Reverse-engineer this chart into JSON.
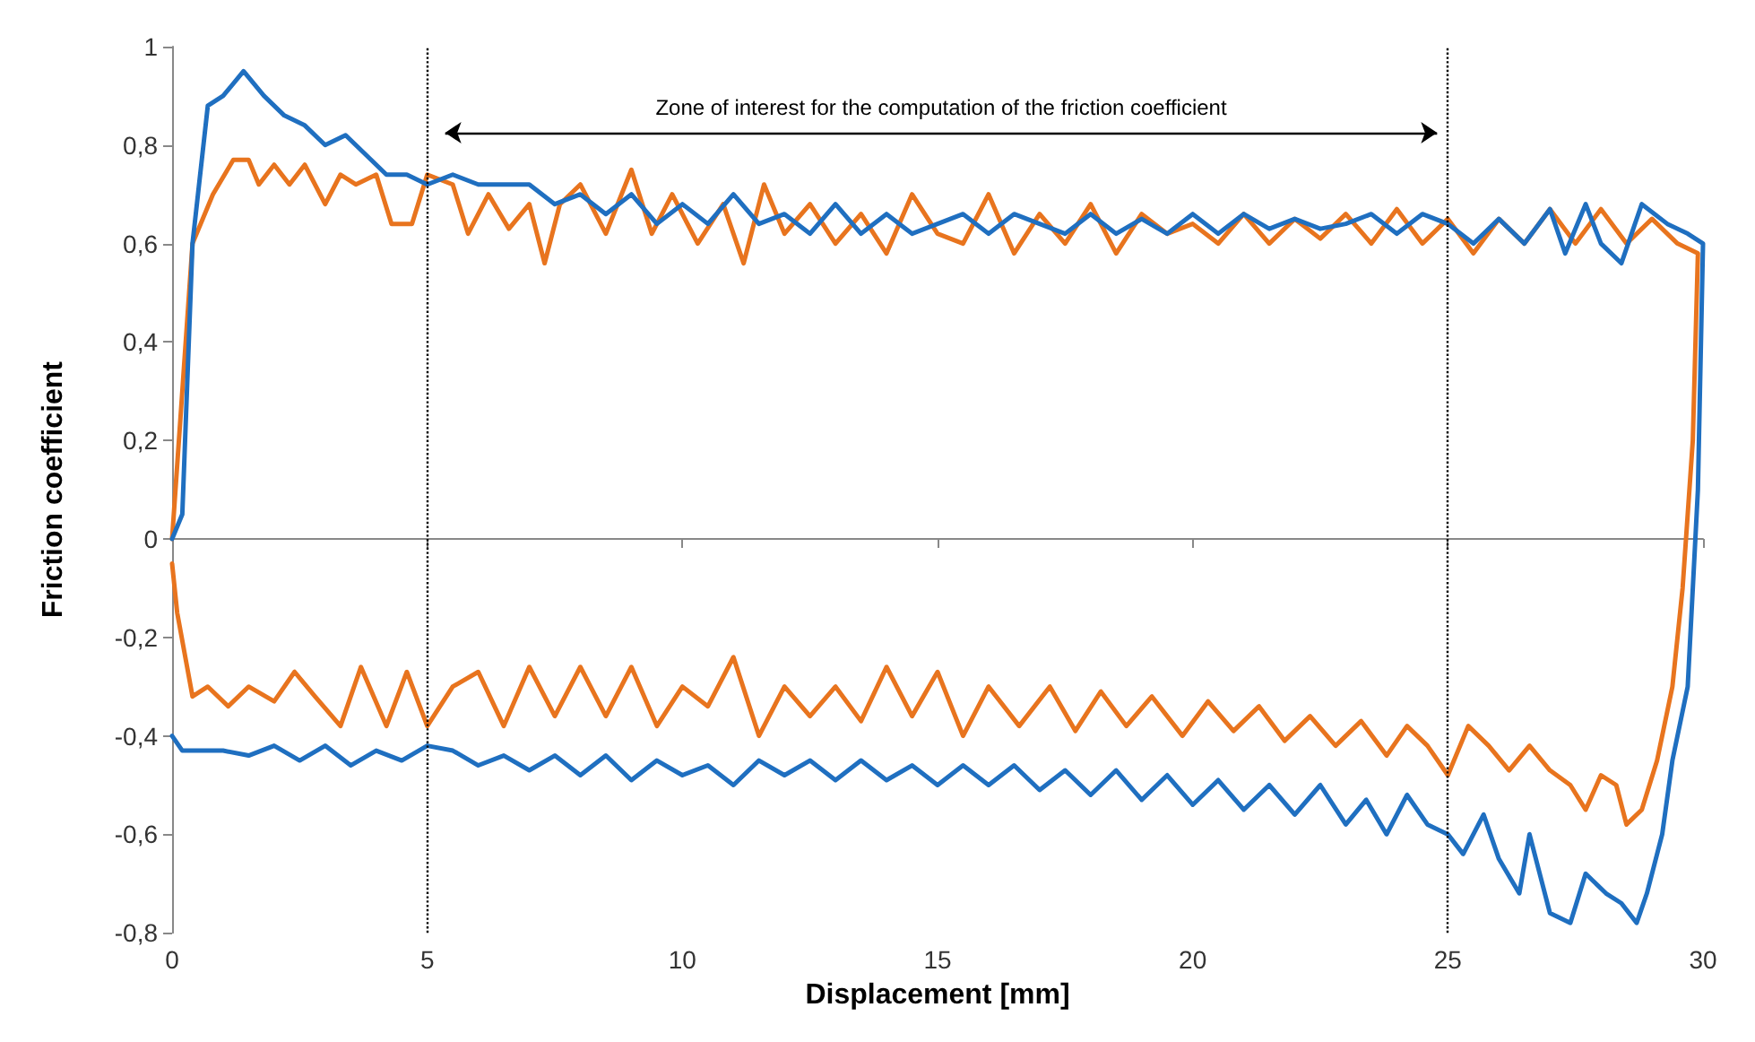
{
  "chart_data": {
    "type": "line",
    "xlabel": "Displacement [mm]",
    "ylabel": "Friction coefficient",
    "xlim": [
      0,
      30
    ],
    "xticks": [
      0,
      5,
      10,
      15,
      20,
      25,
      30
    ],
    "ylim": [
      -0.8,
      1
    ],
    "yticks": [
      {
        "value": -0.8,
        "label": "-0,8"
      },
      {
        "value": -0.6,
        "label": "-0,6"
      },
      {
        "value": -0.4,
        "label": "-0,4"
      },
      {
        "value": -0.2,
        "label": "-0,2"
      },
      {
        "value": 0,
        "label": "0"
      },
      {
        "value": 0.2,
        "label": "0,2"
      },
      {
        "value": 0.4,
        "label": "0,4"
      },
      {
        "value": 0.6,
        "label": "0,6"
      },
      {
        "value": 0.8,
        "label": "0,8"
      },
      {
        "value": 1,
        "label": "1"
      }
    ],
    "grid": false,
    "marker": "none",
    "line_style": "solid",
    "ref_lines": [
      {
        "axis": "x",
        "value": 5,
        "color": "#000000",
        "line_style": "dotted"
      },
      {
        "axis": "x",
        "value": 25,
        "color": "#000000",
        "line_style": "dotted"
      }
    ],
    "annotations": [
      "Zone of interest for the computation of the friction coefficient"
    ],
    "series": [
      {
        "color": "#e8741e",
        "x": [
          0,
          0.2,
          0.4,
          0.8,
          1.2,
          1.5,
          1.7,
          2,
          2.3,
          2.6,
          3,
          3.3,
          3.6,
          4,
          4.3,
          4.7,
          5,
          5.5,
          5.8,
          6.2,
          6.6,
          7,
          7.3,
          7.6,
          8,
          8.5,
          9,
          9.4,
          9.8,
          10.3,
          10.8,
          11.2,
          11.6,
          12,
          12.5,
          13,
          13.5,
          14,
          14.5,
          15,
          15.5,
          16,
          16.5,
          17,
          17.5,
          18,
          18.5,
          19,
          19.5,
          20,
          20.5,
          21,
          21.5,
          22,
          22.5,
          23,
          23.5,
          24,
          24.5,
          25,
          25.5,
          26,
          26.5,
          27,
          27.5,
          28,
          28.5,
          29,
          29.5,
          29.9,
          29.8,
          29.6,
          29.4,
          29.1,
          28.8,
          28.5,
          28.3,
          28,
          27.7,
          27.4,
          27,
          26.6,
          26.2,
          25.8,
          25.4,
          25,
          24.6,
          24.2,
          23.8,
          23.3,
          22.8,
          22.3,
          21.8,
          21.3,
          20.8,
          20.3,
          19.8,
          19.2,
          18.7,
          18.2,
          17.7,
          17.2,
          16.6,
          16,
          15.5,
          15,
          14.5,
          14,
          13.5,
          13,
          12.5,
          12,
          11.5,
          11,
          10.5,
          10,
          9.5,
          9,
          8.5,
          8,
          7.5,
          7,
          6.5,
          6,
          5.5,
          5,
          4.6,
          4.2,
          3.7,
          3.3,
          2.8,
          2.4,
          2,
          1.5,
          1.1,
          0.7,
          0.4,
          0.1,
          0
        ],
        "values": [
          0,
          0.3,
          0.6,
          0.7,
          0.77,
          0.77,
          0.72,
          0.76,
          0.72,
          0.76,
          0.68,
          0.74,
          0.72,
          0.74,
          0.64,
          0.64,
          0.74,
          0.72,
          0.62,
          0.7,
          0.63,
          0.68,
          0.56,
          0.68,
          0.72,
          0.62,
          0.75,
          0.62,
          0.7,
          0.6,
          0.68,
          0.56,
          0.72,
          0.62,
          0.68,
          0.6,
          0.66,
          0.58,
          0.7,
          0.62,
          0.6,
          0.7,
          0.58,
          0.66,
          0.6,
          0.68,
          0.58,
          0.66,
          0.62,
          0.64,
          0.6,
          0.66,
          0.6,
          0.65,
          0.61,
          0.66,
          0.6,
          0.67,
          0.6,
          0.65,
          0.58,
          0.65,
          0.6,
          0.67,
          0.6,
          0.67,
          0.6,
          0.65,
          0.6,
          0.58,
          0.2,
          -0.1,
          -0.3,
          -0.45,
          -0.55,
          -0.58,
          -0.5,
          -0.48,
          -0.55,
          -0.5,
          -0.47,
          -0.42,
          -0.47,
          -0.42,
          -0.38,
          -0.48,
          -0.42,
          -0.38,
          -0.44,
          -0.37,
          -0.42,
          -0.36,
          -0.41,
          -0.34,
          -0.39,
          -0.33,
          -0.4,
          -0.32,
          -0.38,
          -0.31,
          -0.39,
          -0.3,
          -0.38,
          -0.3,
          -0.4,
          -0.27,
          -0.36,
          -0.26,
          -0.37,
          -0.3,
          -0.36,
          -0.3,
          -0.4,
          -0.24,
          -0.34,
          -0.3,
          -0.38,
          -0.26,
          -0.36,
          -0.26,
          -0.36,
          -0.26,
          -0.38,
          -0.27,
          -0.3,
          -0.38,
          -0.27,
          -0.38,
          -0.26,
          -0.38,
          -0.32,
          -0.27,
          -0.33,
          -0.3,
          -0.34,
          -0.3,
          -0.32,
          -0.15,
          -0.05
        ]
      },
      {
        "color": "#1f6fc0",
        "x": [
          0,
          0.2,
          0.4,
          0.7,
          1,
          1.4,
          1.8,
          2.2,
          2.6,
          3,
          3.4,
          3.8,
          4.2,
          4.6,
          5,
          5.5,
          6,
          6.5,
          7,
          7.5,
          8,
          8.5,
          9,
          9.5,
          10,
          10.5,
          11,
          11.5,
          12,
          12.5,
          13,
          13.5,
          14,
          14.5,
          15,
          15.5,
          16,
          16.5,
          17,
          17.5,
          18,
          18.5,
          19,
          19.5,
          20,
          20.5,
          21,
          21.5,
          22,
          22.5,
          23,
          23.5,
          24,
          24.5,
          25,
          25.5,
          26,
          26.5,
          27,
          27.3,
          27.7,
          28,
          28.4,
          28.8,
          29.3,
          29.7,
          30,
          29.9,
          29.7,
          29.4,
          29.2,
          28.9,
          28.7,
          28.4,
          28.1,
          27.7,
          27.4,
          27,
          26.6,
          26.4,
          26,
          25.7,
          25.3,
          25,
          24.6,
          24.2,
          23.8,
          23.4,
          23,
          22.5,
          22,
          21.5,
          21,
          20.5,
          20,
          19.5,
          19,
          18.5,
          18,
          17.5,
          17,
          16.5,
          16,
          15.5,
          15,
          14.5,
          14,
          13.5,
          13,
          12.5,
          12,
          11.5,
          11,
          10.5,
          10,
          9.5,
          9,
          8.5,
          8,
          7.5,
          7,
          6.5,
          6,
          5.5,
          5,
          4.5,
          4,
          3.5,
          3,
          2.5,
          2,
          1.5,
          1,
          0.5,
          0.2,
          0
        ],
        "values": [
          0,
          0.05,
          0.6,
          0.88,
          0.9,
          0.95,
          0.9,
          0.86,
          0.84,
          0.8,
          0.82,
          0.78,
          0.74,
          0.74,
          0.72,
          0.74,
          0.72,
          0.72,
          0.72,
          0.68,
          0.7,
          0.66,
          0.7,
          0.64,
          0.68,
          0.64,
          0.7,
          0.64,
          0.66,
          0.62,
          0.68,
          0.62,
          0.66,
          0.62,
          0.64,
          0.66,
          0.62,
          0.66,
          0.64,
          0.62,
          0.66,
          0.62,
          0.65,
          0.62,
          0.66,
          0.62,
          0.66,
          0.63,
          0.65,
          0.63,
          0.64,
          0.66,
          0.62,
          0.66,
          0.64,
          0.6,
          0.65,
          0.6,
          0.67,
          0.58,
          0.68,
          0.6,
          0.56,
          0.68,
          0.64,
          0.62,
          0.6,
          0.1,
          -0.3,
          -0.45,
          -0.6,
          -0.72,
          -0.78,
          -0.74,
          -0.72,
          -0.68,
          -0.78,
          -0.76,
          -0.6,
          -0.72,
          -0.65,
          -0.56,
          -0.64,
          -0.6,
          -0.58,
          -0.52,
          -0.6,
          -0.53,
          -0.58,
          -0.5,
          -0.56,
          -0.5,
          -0.55,
          -0.49,
          -0.54,
          -0.48,
          -0.53,
          -0.47,
          -0.52,
          -0.47,
          -0.51,
          -0.46,
          -0.5,
          -0.46,
          -0.5,
          -0.46,
          -0.49,
          -0.45,
          -0.49,
          -0.45,
          -0.48,
          -0.45,
          -0.5,
          -0.46,
          -0.48,
          -0.45,
          -0.49,
          -0.44,
          -0.48,
          -0.44,
          -0.47,
          -0.44,
          -0.46,
          -0.43,
          -0.42,
          -0.45,
          -0.43,
          -0.46,
          -0.42,
          -0.45,
          -0.42,
          -0.44,
          -0.43,
          -0.43,
          -0.43,
          -0.4
        ]
      }
    ]
  }
}
